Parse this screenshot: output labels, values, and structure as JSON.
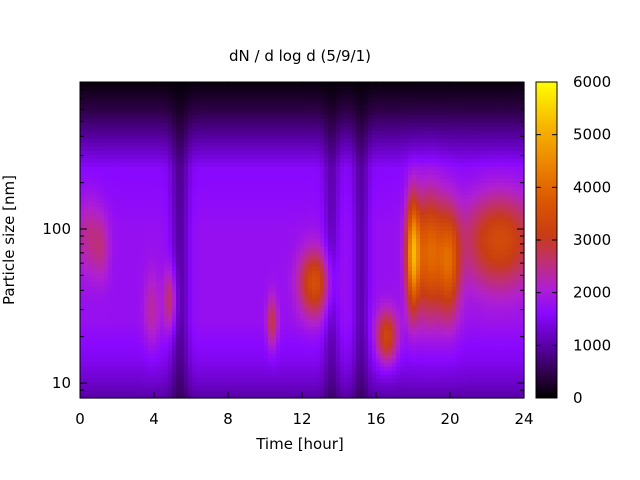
{
  "chart_data": {
    "type": "heatmap",
    "title": "dN / d log d (5/9/1)",
    "xlabel": "Time [hour]",
    "ylabel": "Particle size [nm]",
    "x_ticks": [
      0,
      4,
      8,
      12,
      16,
      20,
      24
    ],
    "xlim": [
      0,
      24
    ],
    "y_scale": "log",
    "y_ticks": [
      10,
      100
    ],
    "ylim": [
      8,
      900
    ],
    "colorbar": {
      "ticks": [
        0,
        1000,
        2000,
        3000,
        4000,
        5000,
        6000
      ],
      "range": [
        0,
        6000
      ],
      "palette": [
        {
          "v": 0,
          "color": "#000000"
        },
        {
          "v": 400,
          "color": "#2a0040"
        },
        {
          "v": 1000,
          "color": "#5a00a8"
        },
        {
          "v": 1600,
          "color": "#8a08ff"
        },
        {
          "v": 2100,
          "color": "#b020d0"
        },
        {
          "v": 2600,
          "color": "#c03070"
        },
        {
          "v": 3100,
          "color": "#c83c14"
        },
        {
          "v": 3800,
          "color": "#dc5a00"
        },
        {
          "v": 4400,
          "color": "#ec8200"
        },
        {
          "v": 5200,
          "color": "#f8b800"
        },
        {
          "v": 6000,
          "color": "#ffff00"
        }
      ]
    },
    "background": {
      "base": 1750,
      "size_profile": [
        {
          "d": 8,
          "f": 0.55
        },
        {
          "d": 10,
          "f": 0.7
        },
        {
          "d": 14,
          "f": 0.85
        },
        {
          "d": 25,
          "f": 1.0
        },
        {
          "d": 100,
          "f": 1.0
        },
        {
          "d": 250,
          "f": 0.9
        },
        {
          "d": 400,
          "f": 0.55
        },
        {
          "d": 600,
          "f": 0.25
        },
        {
          "d": 900,
          "f": 0.05
        }
      ],
      "dips": [
        {
          "t": 5.4,
          "w": 0.35,
          "depth": 0.45
        },
        {
          "t": 13.6,
          "w": 0.3,
          "depth": 0.35
        },
        {
          "t": 15.2,
          "w": 0.3,
          "depth": 0.4
        }
      ]
    },
    "modes": [
      {
        "t": 0.5,
        "d": 90,
        "sig_t": 0.5,
        "sig_logd": 0.18,
        "amp": 700
      },
      {
        "t": 1.2,
        "d": 75,
        "sig_t": 0.3,
        "sig_logd": 0.15,
        "amp": 500
      },
      {
        "t": 3.9,
        "d": 30,
        "sig_t": 0.3,
        "sig_logd": 0.18,
        "amp": 600
      },
      {
        "t": 4.9,
        "d": 35,
        "sig_t": 0.25,
        "sig_logd": 0.15,
        "amp": 1100
      },
      {
        "t": 10.4,
        "d": 25,
        "sig_t": 0.2,
        "sig_logd": 0.12,
        "amp": 1100
      },
      {
        "t": 12.7,
        "d": 45,
        "sig_t": 0.6,
        "sig_logd": 0.15,
        "amp": 1800
      },
      {
        "t": 16.6,
        "d": 20,
        "sig_t": 0.4,
        "sig_logd": 0.12,
        "amp": 1700
      },
      {
        "t": 18.0,
        "d": 70,
        "sig_t": 0.25,
        "sig_logd": 0.25,
        "amp": 2700
      },
      {
        "t": 18.9,
        "d": 70,
        "sig_t": 0.6,
        "sig_logd": 0.28,
        "amp": 2200
      },
      {
        "t": 20.0,
        "d": 60,
        "sig_t": 0.4,
        "sig_logd": 0.25,
        "amp": 1700
      },
      {
        "t": 22.7,
        "d": 85,
        "sig_t": 1.4,
        "sig_logd": 0.22,
        "amp": 1700
      }
    ]
  }
}
